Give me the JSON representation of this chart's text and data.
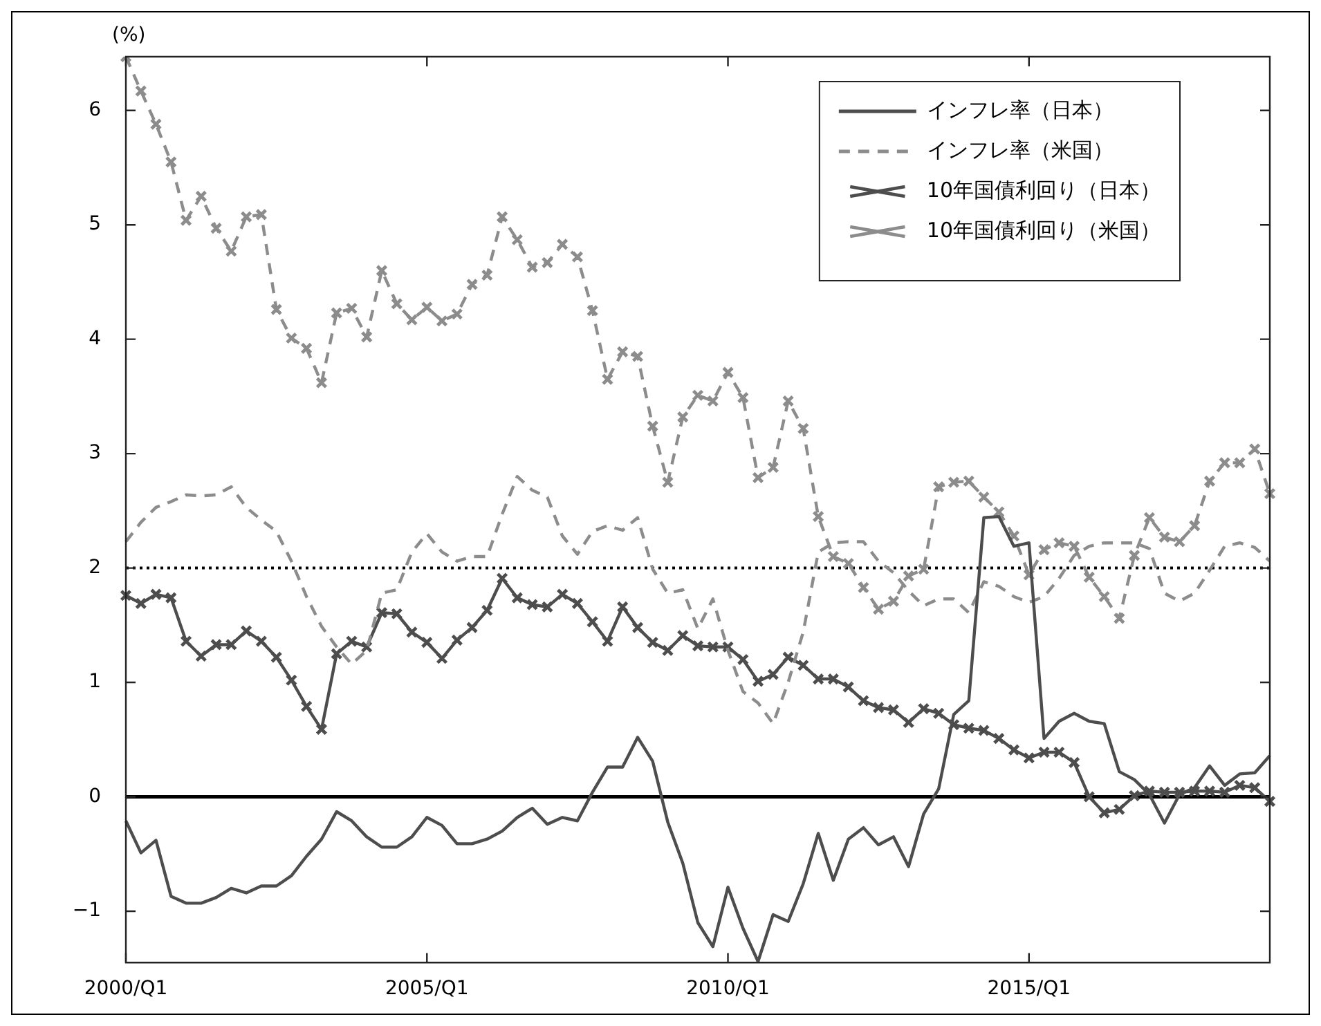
{
  "chart_data": {
    "type": "line",
    "ylabel": "(%)",
    "categories": [
      "2000/Q1",
      null,
      null,
      null,
      null,
      null,
      null,
      null,
      null,
      null,
      null,
      null,
      null,
      null,
      null,
      null,
      null,
      null,
      null,
      null,
      "2005/Q1",
      null,
      null,
      null,
      null,
      null,
      null,
      null,
      null,
      null,
      null,
      null,
      null,
      null,
      null,
      null,
      null,
      null,
      null,
      null,
      "2010/Q1",
      null,
      null,
      null,
      null,
      null,
      null,
      null,
      null,
      null,
      null,
      null,
      null,
      null,
      null,
      null,
      null,
      null,
      null,
      null,
      "2015/Q1",
      null,
      null,
      null,
      null,
      null,
      null,
      null,
      null,
      null,
      null,
      null,
      null,
      null,
      null,
      null,
      null
    ],
    "ylim": [
      -1.45,
      6.47
    ],
    "yticks": [
      -1,
      0,
      1,
      2,
      3,
      4,
      5,
      6
    ],
    "grid": false,
    "legend": "top right",
    "ref_lines": [
      {
        "axis": "y",
        "value": 0,
        "color": "#000000",
        "line_style": "solid"
      },
      {
        "axis": "y",
        "value": 2,
        "color": "#000000",
        "line_style": "dotted"
      }
    ],
    "series": [
      {
        "name": "インフレ率（日本）",
        "color": "#4d4d4d",
        "marker": "none",
        "line_style": "solid",
        "values": [
          -0.21,
          -0.49,
          -0.38,
          -0.87,
          -0.93,
          -0.93,
          -0.88,
          -0.8,
          -0.84,
          -0.78,
          -0.78,
          -0.69,
          -0.52,
          -0.37,
          -0.13,
          -0.21,
          -0.35,
          -0.44,
          -0.44,
          -0.35,
          -0.18,
          -0.25,
          -0.41,
          -0.41,
          -0.37,
          -0.3,
          -0.18,
          -0.1,
          -0.24,
          -0.18,
          -0.21,
          0.04,
          0.26,
          0.26,
          0.52,
          0.31,
          -0.22,
          -0.58,
          -1.1,
          -1.31,
          -0.79,
          -1.15,
          -1.44,
          -1.03,
          -1.09,
          -0.76,
          -0.32,
          -0.73,
          -0.37,
          -0.27,
          -0.42,
          -0.35,
          -0.61,
          -0.15,
          0.07,
          0.72,
          0.84,
          2.44,
          2.45,
          2.19,
          2.22,
          0.51,
          0.66,
          0.73,
          0.66,
          0.64,
          0.22,
          0.15,
          0.02,
          -0.23,
          0.02,
          0.08,
          0.27,
          0.1,
          0.2,
          0.21,
          0.36
        ]
      },
      {
        "name": "インフレ率（米国）",
        "color": "#8c8c8c",
        "marker": "none",
        "line_style": "dashed",
        "values": [
          2.23,
          2.4,
          2.53,
          2.58,
          2.64,
          2.63,
          2.64,
          2.71,
          2.53,
          2.42,
          2.32,
          2.06,
          1.75,
          1.49,
          1.31,
          1.16,
          1.28,
          1.78,
          1.81,
          2.14,
          2.3,
          2.14,
          2.06,
          2.1,
          2.1,
          2.47,
          2.8,
          2.68,
          2.62,
          2.28,
          2.12,
          2.32,
          2.37,
          2.33,
          2.44,
          1.99,
          1.78,
          1.81,
          1.47,
          1.73,
          1.28,
          0.92,
          0.82,
          0.64,
          1.0,
          1.44,
          2.14,
          2.22,
          2.23,
          2.23,
          2.06,
          1.96,
          1.8,
          1.67,
          1.73,
          1.73,
          1.61,
          1.88,
          1.84,
          1.75,
          1.7,
          1.75,
          1.91,
          2.11,
          2.19,
          2.22,
          2.22,
          2.22,
          2.17,
          1.78,
          1.71,
          1.78,
          1.98,
          2.19,
          2.22,
          2.18,
          2.06
        ]
      },
      {
        "name": "10年国債利回り（日本）",
        "color": "#4d4d4d",
        "marker": "cross",
        "line_style": "solid",
        "values": [
          1.76,
          1.69,
          1.77,
          1.74,
          1.36,
          1.23,
          1.33,
          1.33,
          1.45,
          1.36,
          1.22,
          1.02,
          0.79,
          0.59,
          1.25,
          1.36,
          1.31,
          1.61,
          1.6,
          1.44,
          1.35,
          1.21,
          1.37,
          1.48,
          1.63,
          1.91,
          1.74,
          1.68,
          1.66,
          1.77,
          1.69,
          1.53,
          1.36,
          1.66,
          1.48,
          1.35,
          1.28,
          1.41,
          1.32,
          1.31,
          1.31,
          1.2,
          1.01,
          1.07,
          1.22,
          1.15,
          1.03,
          1.03,
          0.96,
          0.84,
          0.78,
          0.76,
          0.65,
          0.77,
          0.73,
          0.63,
          0.6,
          0.58,
          0.51,
          0.41,
          0.34,
          0.39,
          0.39,
          0.3,
          0.0,
          -0.14,
          -0.11,
          0.01,
          0.05,
          0.04,
          0.04,
          0.05,
          0.05,
          0.04,
          0.1,
          0.08,
          -0.04
        ]
      },
      {
        "name": "10年国債利回り（米国）",
        "color": "#8c8c8c",
        "marker": "cross",
        "line_style": "dashed",
        "values": [
          6.47,
          6.17,
          5.88,
          5.55,
          5.04,
          5.25,
          4.97,
          4.77,
          5.07,
          5.09,
          4.26,
          4.01,
          3.92,
          3.62,
          4.23,
          4.27,
          4.02,
          4.6,
          4.31,
          4.17,
          4.28,
          4.16,
          4.22,
          4.48,
          4.56,
          5.07,
          4.87,
          4.63,
          4.67,
          4.83,
          4.72,
          4.25,
          3.65,
          3.89,
          3.85,
          3.24,
          2.75,
          3.32,
          3.51,
          3.46,
          3.71,
          3.49,
          2.79,
          2.88,
          3.46,
          3.22,
          2.45,
          2.1,
          2.04,
          1.83,
          1.64,
          1.71,
          1.93,
          1.99,
          2.71,
          2.75,
          2.76,
          2.62,
          2.49,
          2.28,
          1.94,
          2.16,
          2.22,
          2.19,
          1.92,
          1.75,
          1.56,
          2.11,
          2.44,
          2.27,
          2.23,
          2.37,
          2.76,
          2.92,
          2.92,
          3.04,
          2.65
        ]
      }
    ]
  }
}
